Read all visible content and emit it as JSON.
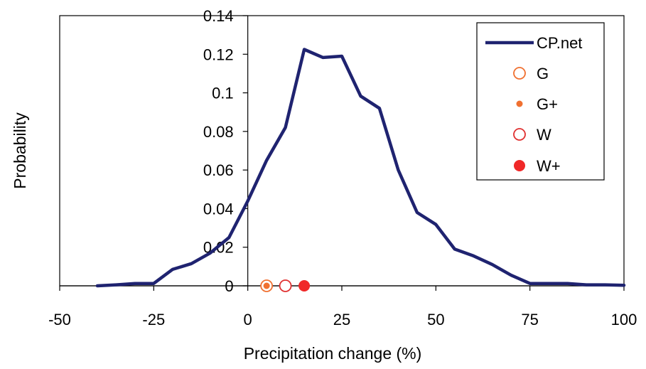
{
  "chart_data": {
    "type": "line",
    "title": "",
    "xlabel": "Precipitation change (%)",
    "ylabel": "Probability",
    "xlim": [
      -50,
      100
    ],
    "ylim": [
      0,
      0.14
    ],
    "x_ticks": [
      -50,
      -25,
      0,
      25,
      50,
      75,
      100
    ],
    "x_tick_labels": [
      "-50",
      "-25",
      "0",
      "25",
      "50",
      "75",
      "100"
    ],
    "y_ticks": [
      0,
      0.02,
      0.04,
      0.06,
      0.08,
      0.1,
      0.12,
      0.14
    ],
    "y_tick_labels": [
      "0",
      "0.02",
      "0.04",
      "0.06",
      "0.08",
      "0.1",
      "0.12",
      "0.14"
    ],
    "grid": false,
    "legend_position": "top-right",
    "series": [
      {
        "name": "CP.net",
        "kind": "line",
        "color": "#1f2370",
        "x": [
          -40,
          -35,
          -30,
          -25,
          -20,
          -15,
          -10,
          -5,
          0,
          5,
          10,
          15,
          20,
          25,
          30,
          35,
          40,
          45,
          50,
          55,
          60,
          65,
          70,
          75,
          80,
          85,
          90,
          95,
          100
        ],
        "y": [
          0.0,
          0.0005,
          0.0012,
          0.0012,
          0.0085,
          0.0115,
          0.017,
          0.025,
          0.044,
          0.065,
          0.082,
          0.1225,
          0.1183,
          0.119,
          0.0983,
          0.092,
          0.06,
          0.038,
          0.0318,
          0.019,
          0.0155,
          0.011,
          0.0055,
          0.0012,
          0.0012,
          0.0012,
          0.0005,
          0.0005,
          0.0003
        ]
      },
      {
        "name": "G",
        "kind": "marker",
        "marker": "open-circle",
        "size": "large",
        "color": "#f07030",
        "x": [
          5
        ],
        "y": [
          0
        ]
      },
      {
        "name": "G+",
        "kind": "marker",
        "marker": "filled-circle",
        "size": "small",
        "color": "#f07030",
        "x": [
          5
        ],
        "y": [
          0
        ]
      },
      {
        "name": "W",
        "kind": "marker",
        "marker": "open-circle",
        "size": "large",
        "color": "#e03030",
        "x": [
          10
        ],
        "y": [
          0
        ]
      },
      {
        "name": "W+",
        "kind": "marker",
        "marker": "filled-circle",
        "size": "large",
        "color": "#f02828",
        "x": [
          15
        ],
        "y": [
          0
        ]
      }
    ]
  }
}
